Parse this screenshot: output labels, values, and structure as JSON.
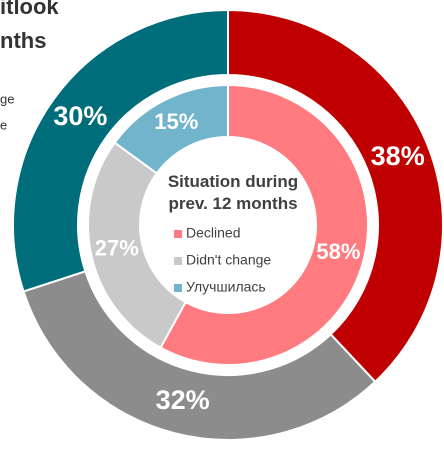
{
  "cropped_text": [
    "itlook",
    "nths",
    "ge",
    "e"
  ],
  "chart_data": [
    {
      "type": "donut",
      "values": [
        38,
        32,
        30
      ],
      "value_labels": [
        "38%",
        "32%",
        "30%"
      ],
      "colors": [
        "#c00000",
        "#8c8c8c",
        "#006d7a"
      ]
    },
    {
      "type": "donut",
      "title": "Situation during prev. 12 months",
      "categories": [
        "Declined",
        "Didn't change",
        "Улучшилась"
      ],
      "values": [
        58,
        27,
        15
      ],
      "value_labels": [
        "58%",
        "27%",
        "15%"
      ],
      "colors": [
        "#ff7b7f",
        "#c9c9c9",
        "#72b4cc"
      ]
    }
  ]
}
